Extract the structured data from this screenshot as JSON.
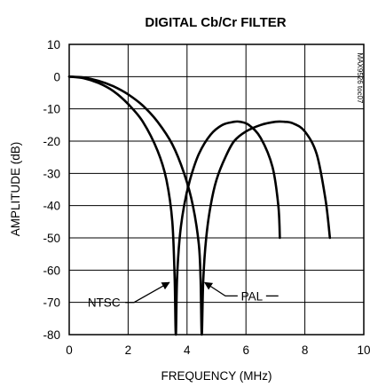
{
  "chart_data": {
    "type": "line",
    "title": "DIGITAL Cb/Cr FILTER",
    "xlabel": "FREQUENCY (MHz)",
    "ylabel": "AMPLITUDE (dB)",
    "xlim": [
      0,
      10
    ],
    "ylim": [
      -80,
      10
    ],
    "xticks": [
      0,
      2,
      4,
      6,
      8,
      10
    ],
    "yticks": [
      10,
      0,
      -10,
      -20,
      -30,
      -40,
      -50,
      -60,
      -70,
      -80
    ],
    "grid": true,
    "watermark": "MAX9526 toc07",
    "annotations": [
      {
        "text": "NTSC",
        "point_at": [
          3.55,
          -63
        ]
      },
      {
        "text": "PAL",
        "point_at": [
          4.45,
          -63
        ]
      }
    ],
    "series": [
      {
        "name": "NTSC",
        "x": [
          0,
          0.5,
          1.0,
          1.5,
          2.0,
          2.5,
          3.0,
          3.3,
          3.5,
          3.58,
          3.62,
          3.66,
          3.75,
          3.9,
          4.1,
          4.4,
          4.8,
          5.2,
          5.6,
          5.8,
          6.1,
          6.5,
          6.9,
          7.1,
          7.15
        ],
        "y": [
          0,
          -0.5,
          -2,
          -4.5,
          -8.5,
          -14,
          -23,
          -32,
          -45,
          -63,
          -80,
          -63,
          -50,
          -40,
          -32,
          -24,
          -18,
          -15,
          -14,
          -14,
          -15,
          -19,
          -28,
          -40,
          -50
        ]
      },
      {
        "name": "PAL",
        "x": [
          0,
          0.5,
          1.0,
          1.5,
          2.0,
          2.5,
          3.0,
          3.5,
          3.9,
          4.2,
          4.4,
          4.46,
          4.5,
          4.55,
          4.65,
          4.8,
          5.0,
          5.3,
          5.6,
          6.0,
          6.5,
          7.0,
          7.3,
          7.6,
          8.0,
          8.4,
          8.7,
          8.85
        ],
        "y": [
          0,
          -0.3,
          -1.3,
          -3,
          -5.5,
          -9,
          -14,
          -21,
          -30,
          -40,
          -52,
          -63,
          -80,
          -63,
          -50,
          -40,
          -32,
          -25,
          -20,
          -17,
          -15,
          -14,
          -14,
          -14.5,
          -17,
          -24,
          -38,
          -50
        ]
      }
    ]
  }
}
